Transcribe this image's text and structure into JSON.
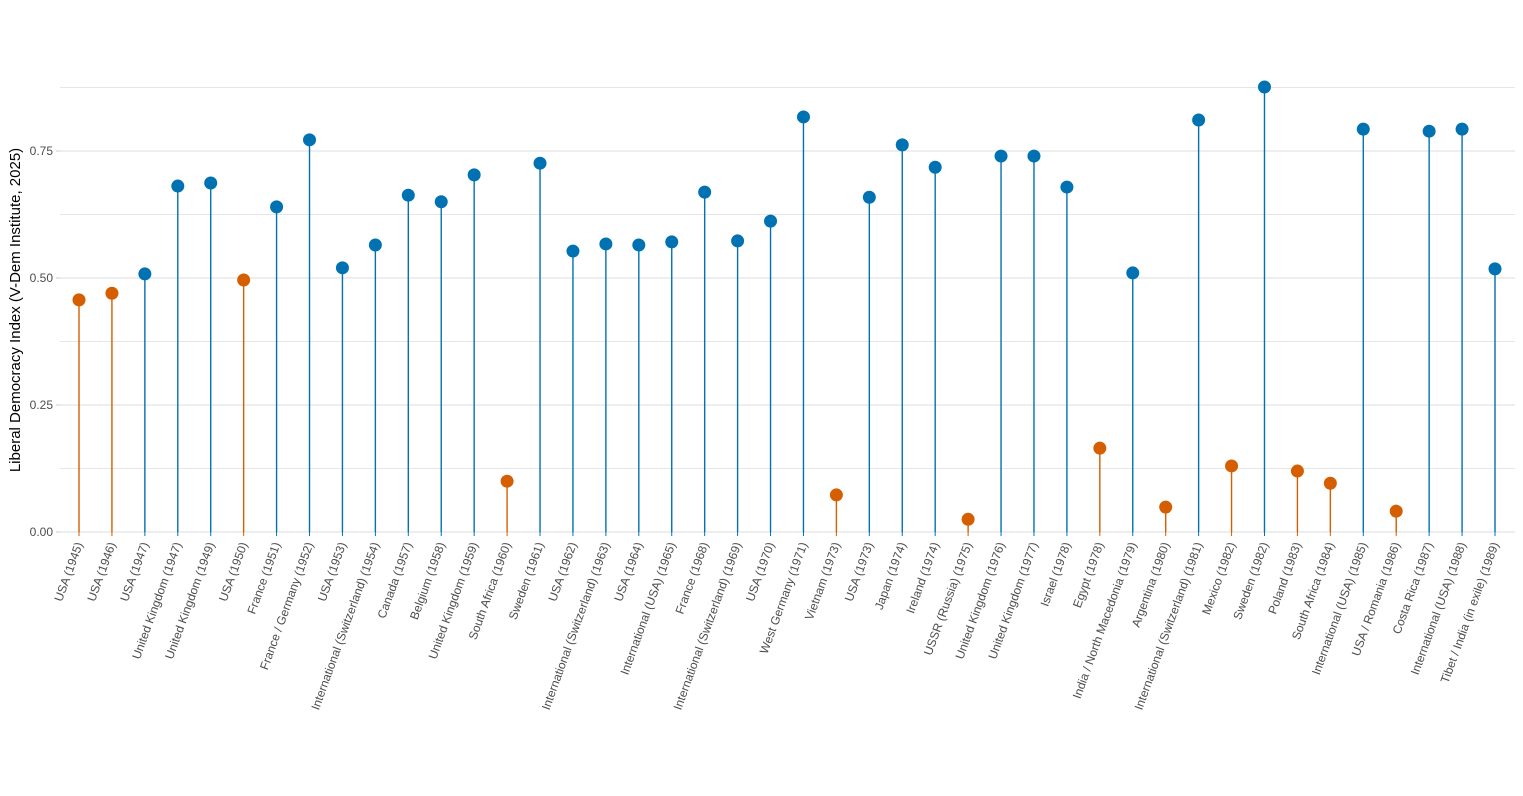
{
  "chart_data": {
    "type": "lollipop",
    "title": "",
    "xlabel": "",
    "ylabel": "Liberal Democracy Index (V-Dem Institute, 2025)",
    "ylim": [
      0,
      0.875
    ],
    "yticks": [
      0.0,
      0.25,
      0.5,
      0.75
    ],
    "ytick_labels": [
      "0.00",
      "0.25",
      "0.50",
      "0.75"
    ],
    "grid": true,
    "legend": "none",
    "colors": {
      "group_a": "#0072B2",
      "group_b": "#D55E00"
    },
    "categories": [
      "USA (1945)",
      "USA (1946)",
      "USA (1947)",
      "United Kingdom (1947)",
      "United Kingdom (1949)",
      "USA (1950)",
      "France (1951)",
      "France / Germany (1952)",
      "USA (1953)",
      "International (Switzerland) (1954)",
      "Canada (1957)",
      "Belgium (1958)",
      "United Kingdom (1959)",
      "South Africa (1960)",
      "Sweden (1961)",
      "USA (1962)",
      "International (Switzerland) (1963)",
      "USA (1964)",
      "International (USA) (1965)",
      "France (1968)",
      "International (Switzerland) (1969)",
      "USA (1970)",
      "West Germany (1971)",
      "Vietnam (1973)",
      "USA (1973)",
      "Japan (1974)",
      "Ireland (1974)",
      "USSR (Russia) (1975)",
      "United Kingdom (1976)",
      "United Kingdom (1977)",
      "Israel (1978)",
      "Egypt (1978)",
      "India / North Macedonia (1979)",
      "Argentina (1980)",
      "International (Switzerland) (1981)",
      "Mexico (1982)",
      "Sweden (1982)",
      "Poland (1983)",
      "South Africa (1984)",
      "International (USA) (1985)",
      "USA / Romania (1986)",
      "Costa Rica (1987)",
      "International (USA) (1988)",
      "Tibet / India (in exile) (1989)"
    ],
    "values": [
      0.457,
      0.47,
      0.508,
      0.681,
      0.687,
      0.496,
      0.64,
      0.772,
      0.52,
      0.565,
      0.663,
      0.65,
      0.703,
      0.1,
      0.726,
      0.553,
      0.567,
      0.565,
      0.571,
      0.669,
      0.573,
      0.612,
      0.817,
      0.073,
      0.659,
      0.762,
      0.718,
      0.025,
      0.74,
      0.74,
      0.679,
      0.165,
      0.51,
      0.049,
      0.811,
      0.13,
      0.876,
      0.12,
      0.096,
      0.793,
      0.041,
      0.789,
      0.793,
      0.518
    ],
    "groups": [
      "b",
      "b",
      "a",
      "a",
      "a",
      "b",
      "a",
      "a",
      "a",
      "a",
      "a",
      "a",
      "a",
      "b",
      "a",
      "a",
      "a",
      "a",
      "a",
      "a",
      "a",
      "a",
      "a",
      "b",
      "a",
      "a",
      "a",
      "b",
      "a",
      "a",
      "a",
      "b",
      "a",
      "b",
      "a",
      "b",
      "a",
      "b",
      "b",
      "a",
      "b",
      "a",
      "a",
      "a"
    ]
  }
}
